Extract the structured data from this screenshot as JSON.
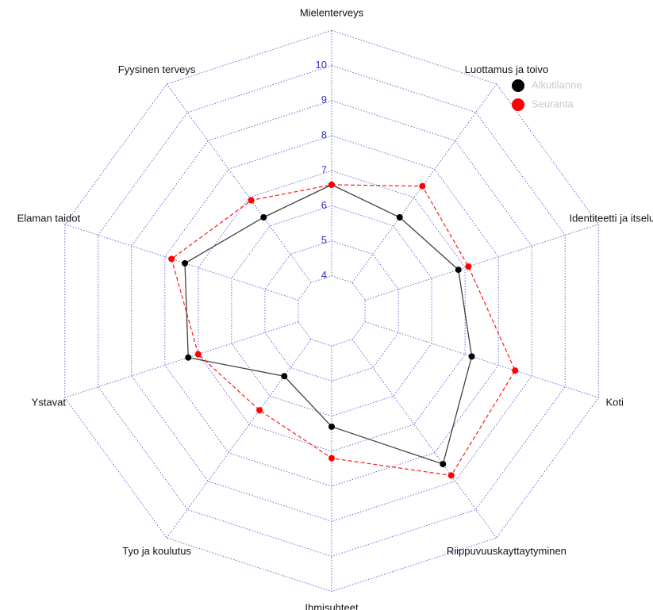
{
  "chart_data": {
    "type": "radar",
    "categories": [
      "Mielenterveys",
      "Luottamus ja toivo",
      "Identiteetti ja itseluc",
      "Koti",
      "Riippuvuuskayttaytyminen",
      "Ihmisuhteet",
      "Tyo ja koulutus",
      "Ystavat",
      "Elaman taidot",
      "Fyysinen terveys"
    ],
    "series": [
      {
        "name": "Alkutilanne",
        "color": "#000000",
        "line": "solid",
        "values": [
          6.6,
          6.3,
          6.8,
          7.2,
          8.4,
          6.3,
          5.3,
          7.3,
          7.4,
          6.3
        ]
      },
      {
        "name": "Seuranta",
        "color": "#ff0000",
        "line": "dashed",
        "values": [
          6.6,
          7.4,
          7.1,
          8.5,
          8.8,
          7.2,
          6.5,
          7.0,
          7.8,
          6.9
        ]
      }
    ],
    "ylim": [
      3,
      11
    ],
    "yticks": [
      4,
      5,
      6,
      7,
      8,
      9,
      10
    ],
    "grid": true,
    "legend": "top-right"
  }
}
